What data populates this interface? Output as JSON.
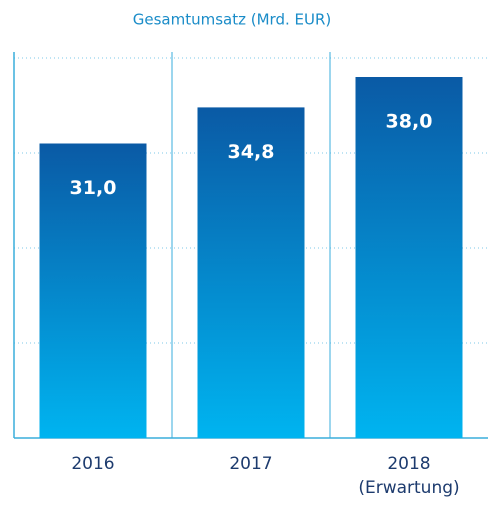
{
  "chart_data": {
    "type": "bar",
    "title": "Gesamtumsatz (Mrd. EUR)",
    "categories": [
      "2016",
      "2017",
      "2018 (Erwartung)"
    ],
    "values": [
      31.0,
      34.8,
      38.0
    ],
    "value_labels": [
      "31,0",
      "34,8",
      "38,0"
    ],
    "color": "#0a5aa5",
    "ylim": [
      0,
      40
    ],
    "yticks": [
      10,
      20,
      30,
      40
    ],
    "grid": true
  }
}
